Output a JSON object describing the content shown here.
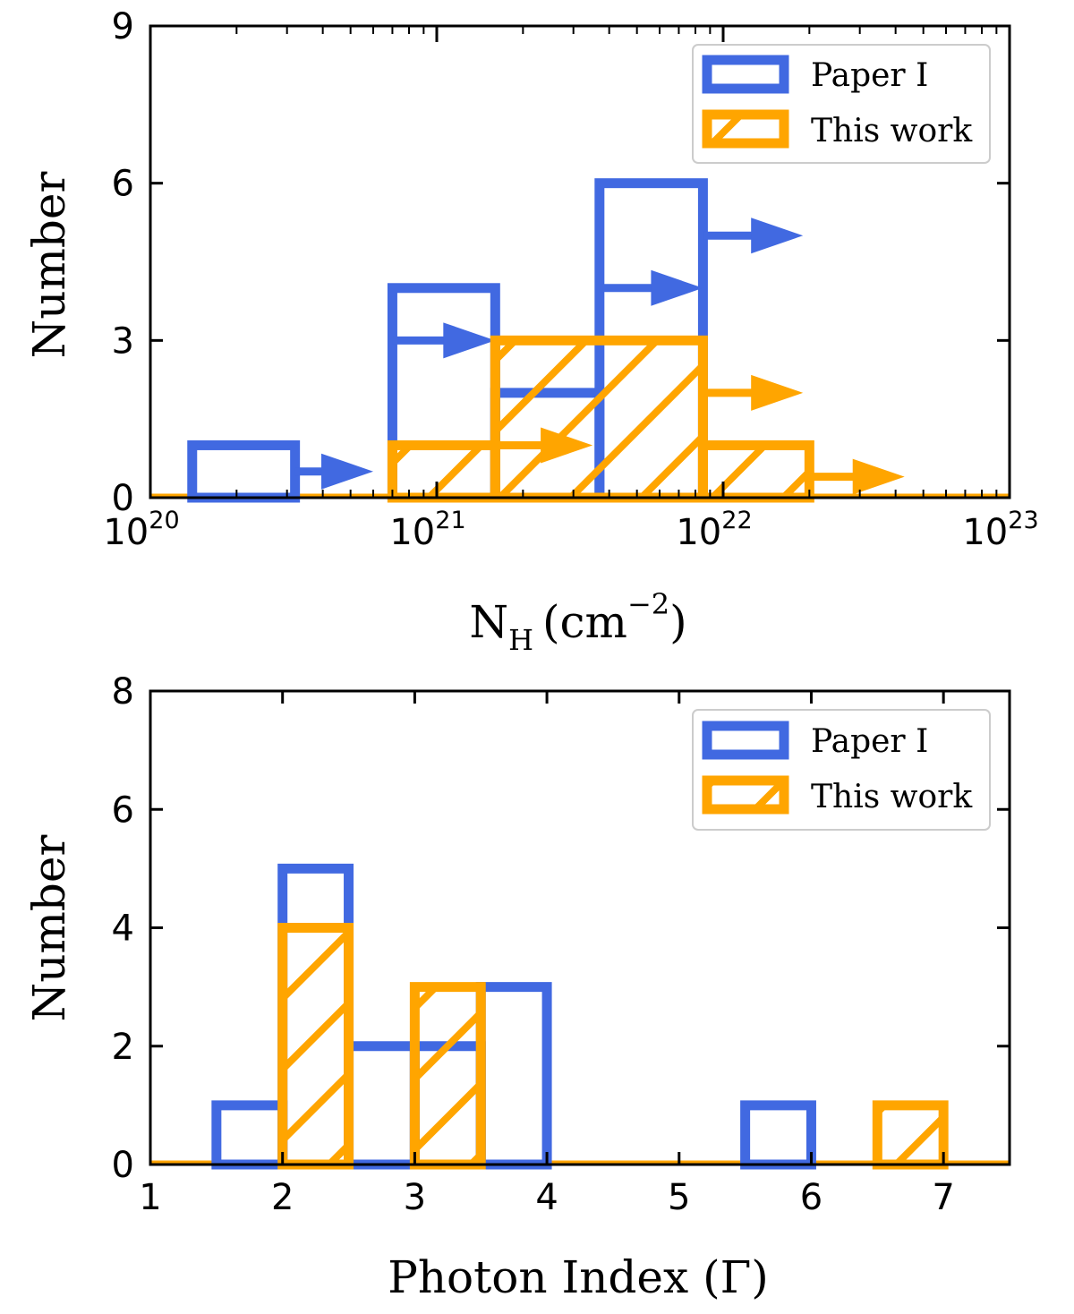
{
  "chart_data": [
    {
      "type": "histogram",
      "xscale": "log",
      "xlim": [
        1e+20,
        1e+23
      ],
      "ylim": [
        0,
        9
      ],
      "xlabel": "N_H (cm^-2)",
      "xlabel_main": "N",
      "xlabel_sub": "H",
      "xlabel_open": "(cm",
      "xlabel_sup": "−2",
      "xlabel_close": ")",
      "ylabel": "Number",
      "xticks": [
        {
          "base": "10",
          "exp": "20",
          "value": 1e+20
        },
        {
          "base": "10",
          "exp": "21",
          "value": 1e+21
        },
        {
          "base": "10",
          "exp": "22",
          "value": 1e+22
        },
        {
          "base": "10",
          "exp": "23",
          "value": 1e+23
        }
      ],
      "yticks": [
        "0",
        "3",
        "6",
        "9"
      ],
      "legend_position": "top-right",
      "series": [
        {
          "name": "Paper I",
          "color": "#4169E1",
          "hatch": false,
          "bins": [
            {
              "x0": 1.4e+20,
              "x1": 3.2e+20,
              "value": 1
            },
            {
              "x0": 7e+20,
              "x1": 1.6e+21,
              "value": 4
            },
            {
              "x0": 1.6e+21,
              "x1": 3.7e+21,
              "value": 2
            },
            {
              "x0": 3.7e+21,
              "x1": 8.5e+21,
              "value": 6
            }
          ],
          "limits": [
            {
              "x_start": 3.2e+20,
              "x_end": 6e+20,
              "y": 0.5
            },
            {
              "x_start": 7e+20,
              "x_end": 1.6e+21,
              "y": 3.0
            },
            {
              "x_start": 3.7e+21,
              "x_end": 8.5e+21,
              "y": 4.0
            },
            {
              "x_start": 8.5e+21,
              "x_end": 1.9e+22,
              "y": 5.0
            }
          ]
        },
        {
          "name": "This work",
          "color": "#FFA500",
          "hatch": true,
          "bins": [
            {
              "x0": 7e+20,
              "x1": 1.6e+21,
              "value": 1
            },
            {
              "x0": 1.6e+21,
              "x1": 8.5e+21,
              "value": 3
            },
            {
              "x0": 8.5e+21,
              "x1": 2e+22,
              "value": 1
            }
          ],
          "limits": [
            {
              "x_start": 1.6e+21,
              "x_end": 3.5e+21,
              "y": 1.0
            },
            {
              "x_start": 8.5e+21,
              "x_end": 1.9e+22,
              "y": 2.0
            },
            {
              "x_start": 2e+22,
              "x_end": 4.3e+22,
              "y": 0.4
            }
          ]
        }
      ]
    },
    {
      "type": "histogram",
      "xscale": "linear",
      "xlim": [
        1,
        7.5
      ],
      "ylim": [
        0,
        8
      ],
      "xlabel": "Photon Index (Γ)",
      "ylabel": "Number",
      "xticks": [
        "1",
        "2",
        "3",
        "4",
        "5",
        "6",
        "7"
      ],
      "yticks": [
        "0",
        "2",
        "4",
        "6",
        "8"
      ],
      "legend_position": "top-right",
      "series": [
        {
          "name": "Paper I",
          "color": "#4169E1",
          "hatch": false,
          "bins": [
            {
              "x0": 1.5,
              "x1": 2.0,
              "value": 1
            },
            {
              "x0": 2.0,
              "x1": 2.5,
              "value": 5
            },
            {
              "x0": 2.5,
              "x1": 3.0,
              "value": 2
            },
            {
              "x0": 3.0,
              "x1": 3.5,
              "value": 2
            },
            {
              "x0": 3.5,
              "x1": 4.0,
              "value": 3
            },
            {
              "x0": 5.5,
              "x1": 6.0,
              "value": 1
            }
          ]
        },
        {
          "name": "This work",
          "color": "#FFA500",
          "hatch": true,
          "bins": [
            {
              "x0": 2.0,
              "x1": 2.5,
              "value": 4
            },
            {
              "x0": 3.0,
              "x1": 3.5,
              "value": 3
            },
            {
              "x0": 6.5,
              "x1": 7.0,
              "value": 1
            }
          ]
        }
      ]
    }
  ]
}
